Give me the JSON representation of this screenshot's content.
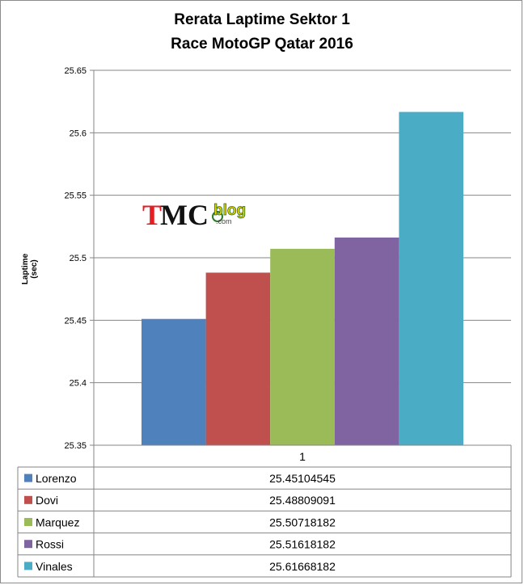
{
  "chart_data": {
    "type": "bar",
    "title": "Rerata Laptime Sektor 1",
    "subtitle": "Race MotoGP Qatar 2016",
    "ylabel": "Laptime (sec)",
    "xlabel": "",
    "categories": [
      "1"
    ],
    "ylim": [
      25.35,
      25.65
    ],
    "yticks": [
      25.35,
      25.4,
      25.45,
      25.5,
      25.55,
      25.6,
      25.65
    ],
    "grid": true,
    "legend": "table-below",
    "series": [
      {
        "name": "Lorenzo",
        "values": [
          25.45104545
        ],
        "value_label": "25.45104545",
        "color": "#4F81BD"
      },
      {
        "name": "Dovi",
        "values": [
          25.48809091
        ],
        "value_label": "25.48809091",
        "color": "#C0504D"
      },
      {
        "name": "Marquez",
        "values": [
          25.50718182
        ],
        "value_label": "25.50718182",
        "color": "#9BBB59"
      },
      {
        "name": "Rossi",
        "values": [
          25.51618182
        ],
        "value_label": "25.51618182",
        "color": "#8064A2"
      },
      {
        "name": "Vinales",
        "values": [
          25.61668182
        ],
        "value_label": "25.61668182",
        "color": "#4BACC6"
      }
    ]
  },
  "watermark": {
    "text_tmc": "TMC",
    "text_blog": "blog",
    "text_com": ".com"
  }
}
